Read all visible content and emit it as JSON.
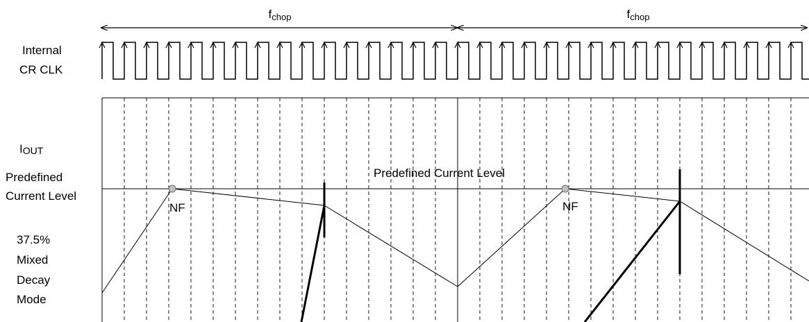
{
  "top_labels": {
    "fchop_base": "f",
    "fchop_sub": "chop"
  },
  "signal_labels": {
    "clock_line1": "Internal",
    "clock_line2": "CR CLK",
    "iout_base": "I",
    "iout_sub": "OUT",
    "predefined_line1": "Predefined",
    "predefined_line2": "Current Level",
    "mode_line1": "37.5%",
    "mode_line2": "Mixed",
    "mode_line3": "Decay",
    "mode_line4": "Mode"
  },
  "annotations": {
    "predefined_current_level": "Predefined Current Level",
    "nf_marker": "NF"
  },
  "colors": {
    "line": "#000000",
    "marker_fill": "#c0c0c0",
    "background": "#ffffff"
  }
}
